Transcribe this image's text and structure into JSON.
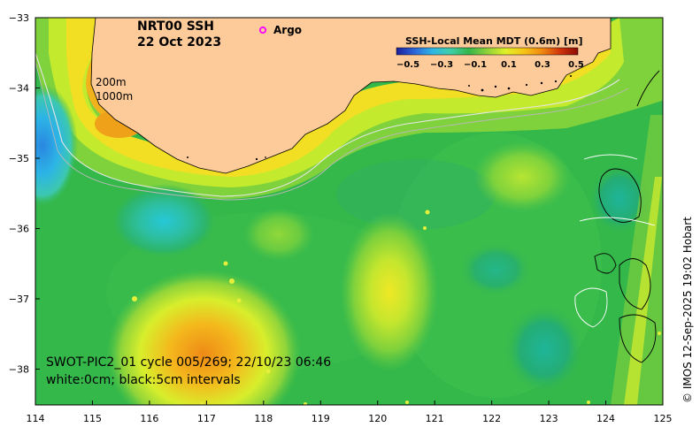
{
  "title": {
    "line1": "NRT00 SSH",
    "line2": "22 Oct 2023"
  },
  "argo_label": "Argo",
  "contour_labels": {
    "shallow": "200m",
    "deep": "1000m"
  },
  "legend": {
    "title": "SSH-Local Mean MDT (0.6m) [m]",
    "ticks": [
      "−0.5",
      "−0.3",
      "−0.1",
      "0.1",
      "0.3",
      "0.5"
    ],
    "colors": [
      "#1d1f9c",
      "#2c66d8",
      "#2fb7e6",
      "#3fcfa7",
      "#36b54a",
      "#8fd13a",
      "#dff028",
      "#f7c515",
      "#f08a10",
      "#d2370c",
      "#8c0b05"
    ]
  },
  "axes": {
    "x_ticks": [
      "114",
      "115",
      "116",
      "117",
      "118",
      "119",
      "120",
      "121",
      "122",
      "123",
      "124",
      "125"
    ],
    "y_ticks": [
      "−33",
      "−34",
      "−35",
      "−36",
      "−37",
      "−38"
    ]
  },
  "footer": {
    "line1": "SWOT-PIC2_01 cycle 005/269; 22/10/23 06:46",
    "line2": "white:0cm; black:5cm intervals"
  },
  "credit": "© IMOS 12-Sep-2025 19:02 Hobart",
  "colors": {
    "land": "#fdcb9a",
    "sea_base": "#34b84a",
    "argo_marker": "#ff00ff"
  }
}
